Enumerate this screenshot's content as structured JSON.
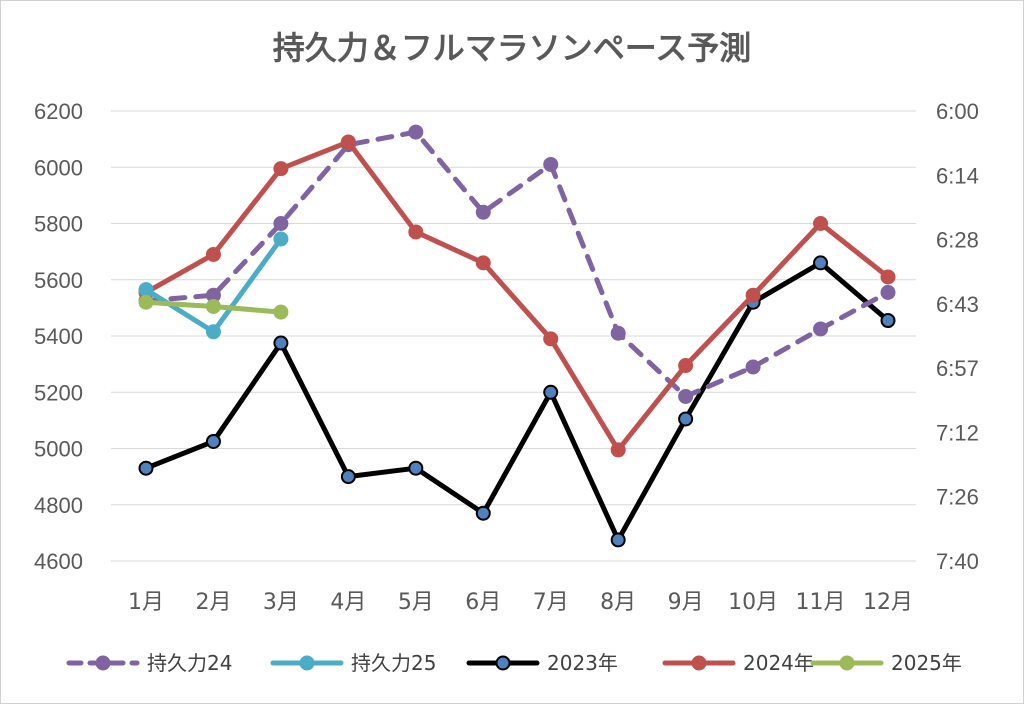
{
  "chart_data": {
    "type": "line",
    "title": "持久力＆フルマラソンペース予測",
    "categories": [
      "1月",
      "2月",
      "3月",
      "4月",
      "5月",
      "6月",
      "7月",
      "8月",
      "9月",
      "10月",
      "11月",
      "12月"
    ],
    "ylim": [
      4600,
      6200
    ],
    "yticks": [
      "6200",
      "6000",
      "5800",
      "5600",
      "5400",
      "5200",
      "5000",
      "4800",
      "4600"
    ],
    "y2ticks": [
      "6:00",
      "6:14",
      "6:28",
      "6:43",
      "6:57",
      "7:12",
      "7:26",
      "7:40"
    ],
    "grid": true,
    "legend_position": "bottom",
    "series": [
      {
        "name": "持久力24",
        "color": "#8064a2",
        "dashed": true,
        "marker": "#8064a2",
        "values": [
          5525,
          5545,
          5800,
          6080,
          6125,
          5840,
          6010,
          5410,
          5185,
          5290,
          5425,
          5555
        ]
      },
      {
        "name": "持久力25",
        "color": "#4bacc6",
        "dashed": false,
        "marker": "#4bacc6",
        "values": [
          5565,
          5415,
          5745,
          null,
          null,
          null,
          null,
          null,
          null,
          null,
          null,
          null
        ]
      },
      {
        "name": "2023年",
        "color": "#000000",
        "dashed": false,
        "marker": "#4f81bd",
        "values": [
          4930,
          5025,
          5375,
          4900,
          4930,
          4770,
          5200,
          4675,
          5105,
          5520,
          5660,
          5455
        ]
      },
      {
        "name": "2024年",
        "color": "#c0504d",
        "dashed": false,
        "marker": "#c0504d",
        "values": [
          5555,
          5690,
          5995,
          6090,
          5770,
          5660,
          5390,
          4995,
          5295,
          5545,
          5800,
          5610
        ]
      },
      {
        "name": "2025年",
        "color": "#9bbb59",
        "dashed": false,
        "marker": "#9bbb59",
        "values": [
          5520,
          5505,
          5485,
          null,
          null,
          null,
          null,
          null,
          null,
          null,
          null,
          null
        ]
      }
    ]
  }
}
